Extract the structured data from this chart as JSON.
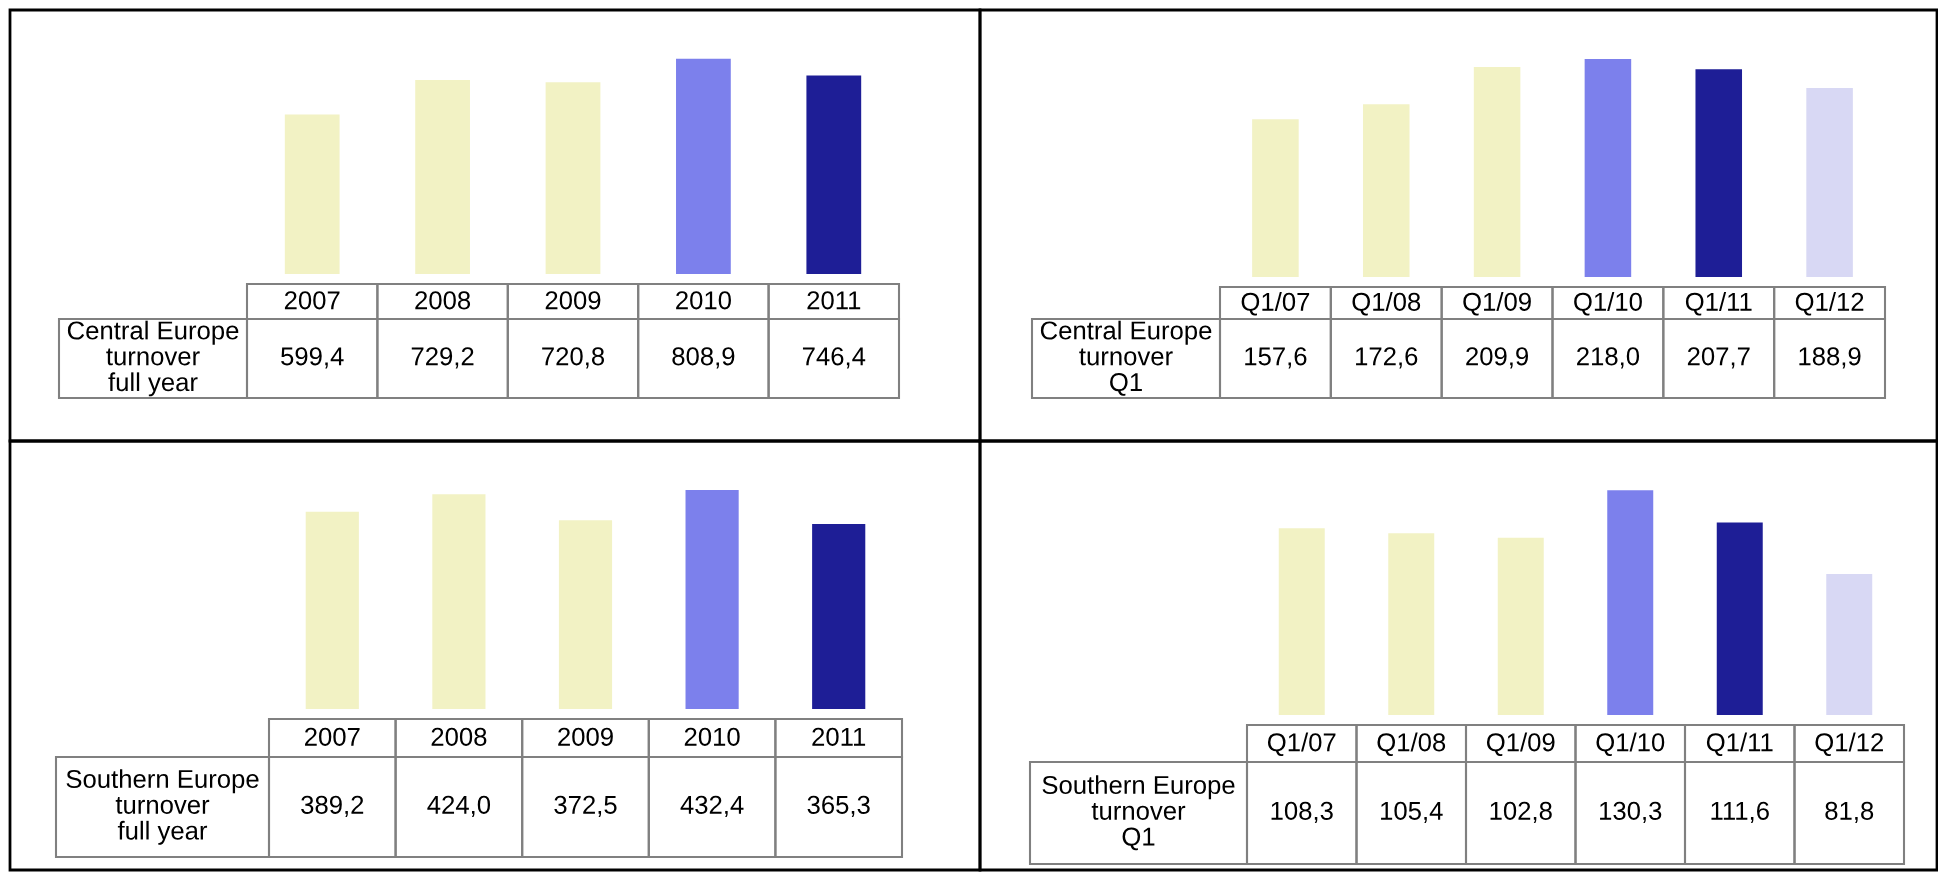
{
  "chart_data": [
    {
      "type": "bar",
      "tick_labels": "x",
      "categories": [
        "2007",
        "2008",
        "2009",
        "2010",
        "2011"
      ],
      "series": [
        {
          "name": "Central Europe\nturnover\nfull year",
          "values": [
            599.4,
            729.2,
            720.8,
            808.9,
            746.4
          ],
          "colors": [
            "#f2f2c4",
            "#f2f2c4",
            "#f2f2c4",
            "#7c80ec",
            "#1e1e96"
          ],
          "value_labels": [
            "599,4",
            "729,2",
            "720,8",
            "808,9",
            "746,4"
          ]
        }
      ]
    },
    {
      "type": "bar",
      "tick_labels": "x",
      "categories": [
        "Q1/07",
        "Q1/08",
        "Q1/09",
        "Q1/10",
        "Q1/11",
        "Q1/12"
      ],
      "series": [
        {
          "name": "Central Europe\nturnover\nQ1",
          "values": [
            157.6,
            172.6,
            209.9,
            218.0,
            207.7,
            188.9
          ],
          "colors": [
            "#f2f2c4",
            "#f2f2c4",
            "#f2f2c4",
            "#7c80ec",
            "#1e1e96",
            "#d8d8f4"
          ],
          "value_labels": [
            "157,6",
            "172,6",
            "209,9",
            "218,0",
            "207,7",
            "188,9"
          ]
        }
      ]
    },
    {
      "type": "bar",
      "tick_labels": "x",
      "categories": [
        "2007",
        "2008",
        "2009",
        "2010",
        "2011"
      ],
      "series": [
        {
          "name": "Southern Europe\nturnover\nfull year",
          "values": [
            389.2,
            424.0,
            372.5,
            432.4,
            365.3
          ],
          "colors": [
            "#f2f2c4",
            "#f2f2c4",
            "#f2f2c4",
            "#7c80ec",
            "#1e1e96"
          ],
          "value_labels": [
            "389,2",
            "424,0",
            "372,5",
            "432,4",
            "365,3"
          ]
        }
      ]
    },
    {
      "type": "bar",
      "tick_labels": "x",
      "categories": [
        "Q1/07",
        "Q1/08",
        "Q1/09",
        "Q1/10",
        "Q1/11",
        "Q1/12"
      ],
      "series": [
        {
          "name": "Southern Europe\nturnover\nQ1",
          "values": [
            108.3,
            105.4,
            102.8,
            130.3,
            111.6,
            81.8
          ],
          "colors": [
            "#f2f2c4",
            "#f2f2c4",
            "#f2f2c4",
            "#7c80ec",
            "#1e1e96",
            "#d8d8f4"
          ],
          "value_labels": [
            "108,3",
            "105,4",
            "102,8",
            "130,3",
            "111,6",
            "81,8"
          ]
        }
      ]
    }
  ]
}
